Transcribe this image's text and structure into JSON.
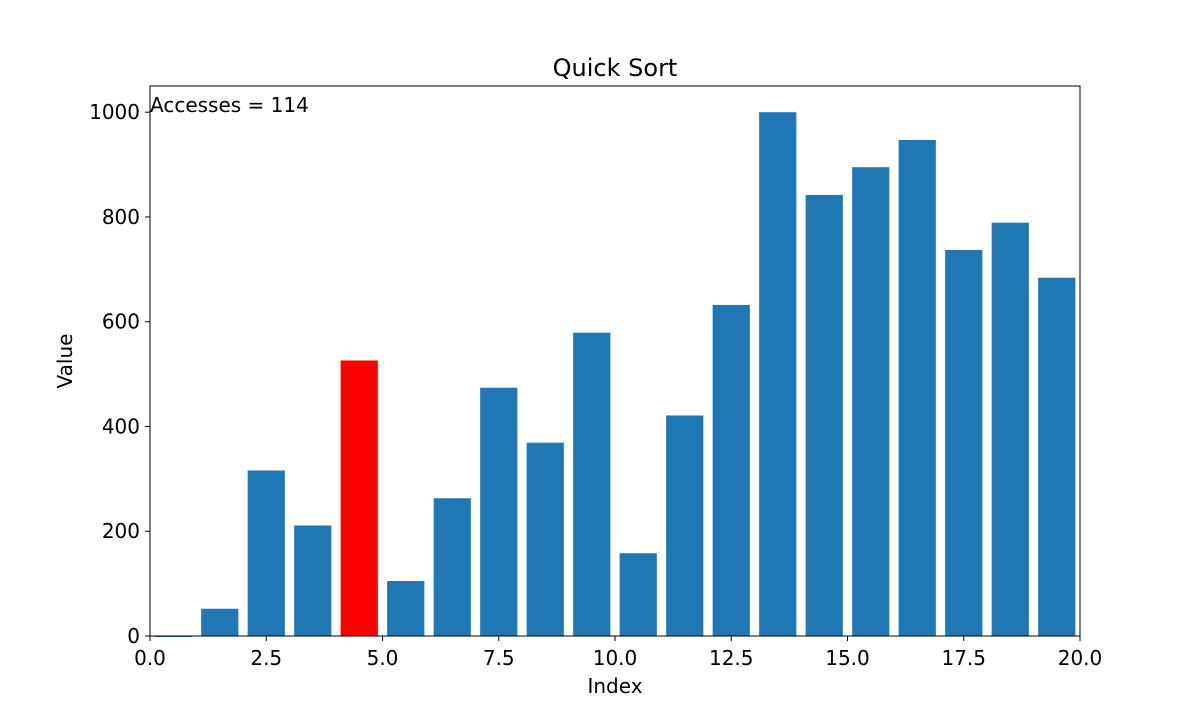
{
  "chart_data": {
    "type": "bar",
    "title": "Quick Sort",
    "xlabel": "Index",
    "ylabel": "Value",
    "xlim": [
      0,
      20
    ],
    "ylim": [
      0,
      1050
    ],
    "xticks": [
      0,
      2.5,
      5,
      7.5,
      10,
      12.5,
      15,
      17.5,
      20
    ],
    "xtick_labels": [
      "0.0",
      "2.5",
      "5.0",
      "7.5",
      "10.0",
      "12.5",
      "15.0",
      "17.5",
      "20.0"
    ],
    "yticks": [
      0,
      200,
      400,
      600,
      800,
      1000
    ],
    "ytick_labels": [
      "0",
      "200",
      "400",
      "600",
      "800",
      "1000"
    ],
    "grid": false,
    "bar_width": 0.8,
    "x": [
      0,
      1,
      2,
      3,
      4,
      5,
      6,
      7,
      8,
      9,
      10,
      11,
      12,
      13,
      14,
      15,
      16,
      17,
      18,
      19
    ],
    "values": [
      0,
      52,
      316,
      211,
      526,
      105,
      263,
      474,
      369,
      579,
      158,
      421,
      632,
      1000,
      842,
      895,
      947,
      737,
      789,
      684
    ],
    "bar_color": "#1f77b4",
    "highlight_color": "#ff0000",
    "highlight_indices": [
      4
    ],
    "annotation": "Accesses = 114"
  }
}
